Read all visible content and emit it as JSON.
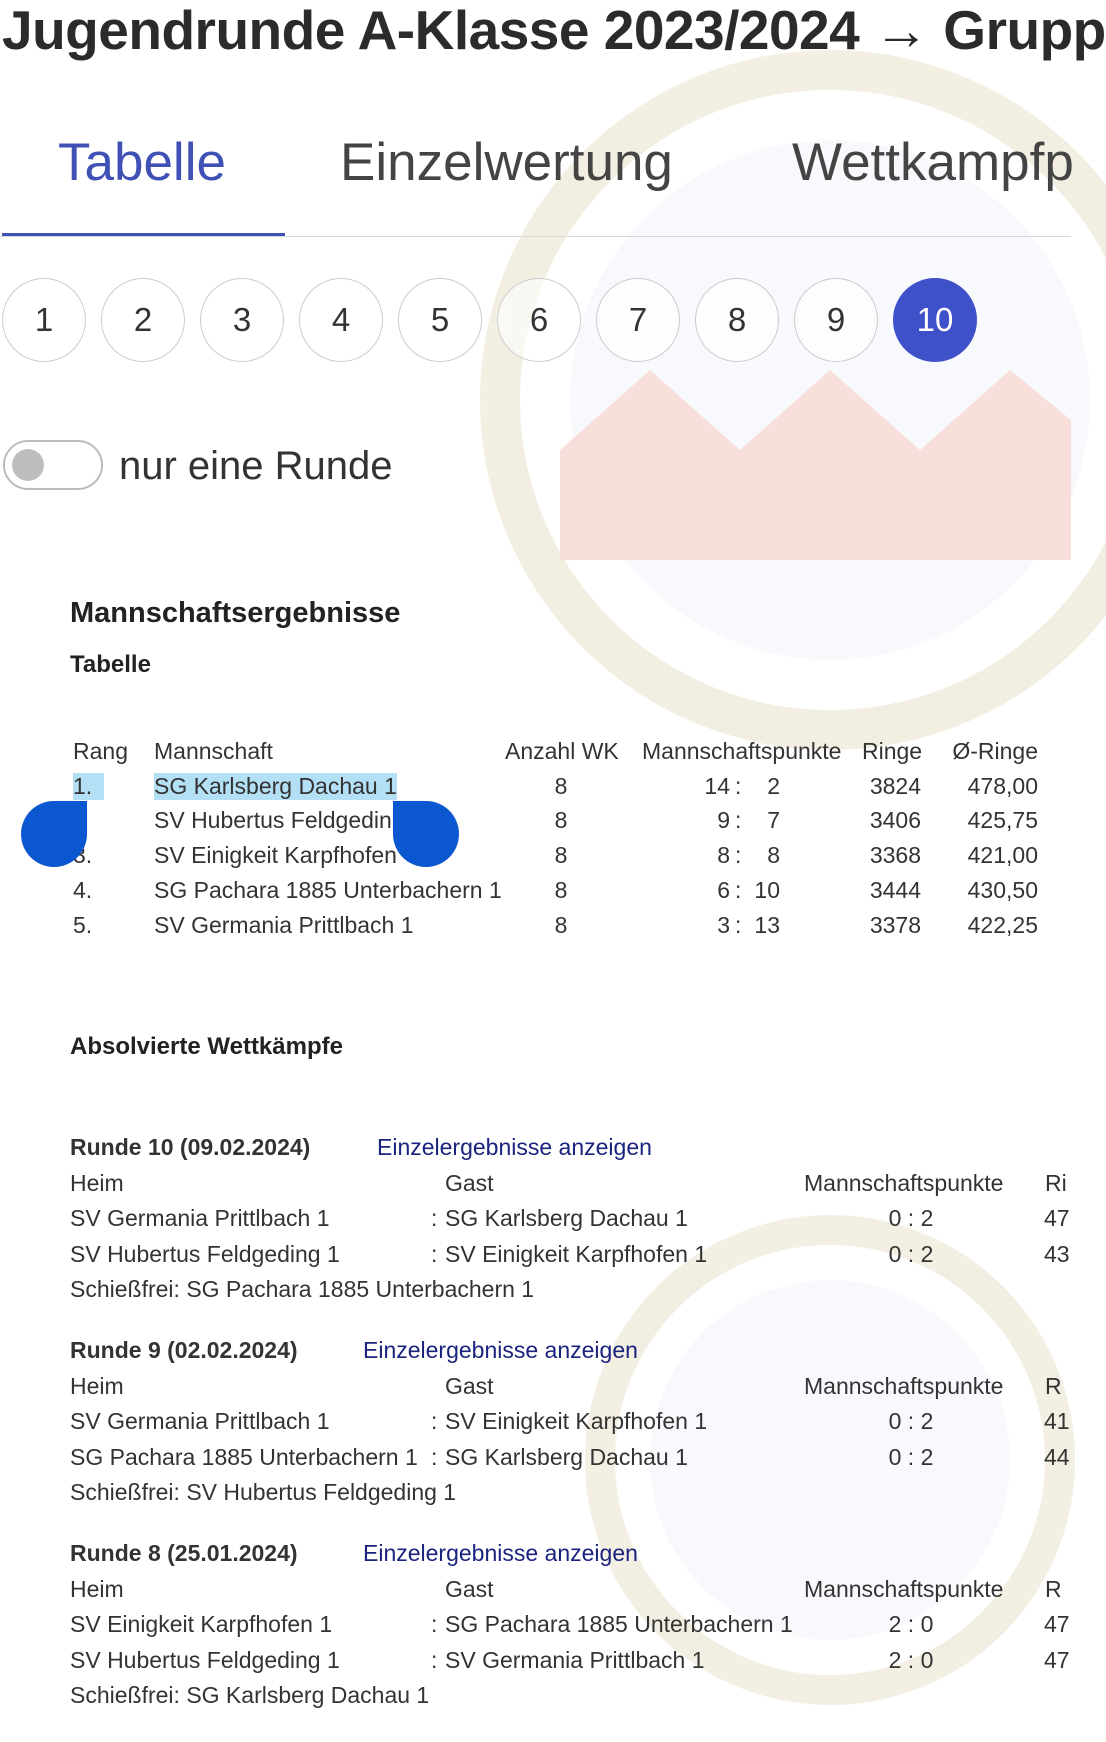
{
  "header": {
    "title": "Jugendrunde A-Klasse 2023/2024 → Grupp"
  },
  "tabs": [
    {
      "label": "Tabelle",
      "active": true
    },
    {
      "label": "Einzelwertung"
    },
    {
      "label": "Wettkampfp"
    }
  ],
  "accent_color": "#3f51b5",
  "pagination": {
    "pages": [
      "1",
      "2",
      "3",
      "4",
      "5",
      "6",
      "7",
      "8",
      "9",
      "10"
    ],
    "active": "10"
  },
  "toggle": {
    "label": "nur eine Runde",
    "on": false
  },
  "section_title": "Mannschaftsergebnisse",
  "table_title": "Tabelle",
  "standings": {
    "columns": [
      "Rang",
      "Mannschaft",
      "Anzahl WK",
      "Mannschaftspunkte",
      "Ringe",
      "Ø-Ringe"
    ],
    "rows": [
      {
        "rang": "1.",
        "team": "SG Karlsberg Dachau 1",
        "wk": "8",
        "mp_plus": "14",
        "mp_minus": "2",
        "ringe": "3824",
        "avg": "478,00"
      },
      {
        "rang": ".",
        "team": "SV Hubertus Feldgedin",
        "wk": "8",
        "mp_plus": "9",
        "mp_minus": "7",
        "ringe": "3406",
        "avg": "425,75"
      },
      {
        "rang": "3.",
        "team": "SV Einigkeit Karpfhofen",
        "wk": "8",
        "mp_plus": "8",
        "mp_minus": "8",
        "ringe": "3368",
        "avg": "421,00"
      },
      {
        "rang": "4.",
        "team": "SG Pachara 1885 Unterbachern 1",
        "wk": "8",
        "mp_plus": "6",
        "mp_minus": "10",
        "ringe": "3444",
        "avg": "430,50"
      },
      {
        "rang": "5.",
        "team": "SV Germania Prittlbach 1",
        "wk": "8",
        "mp_plus": "3",
        "mp_minus": "13",
        "ringe": "3378",
        "avg": "422,25"
      }
    ]
  },
  "completed_title": "Absolvierte Wettkämpfe",
  "rounds": [
    {
      "title": "Runde 10  (09.02.2024)",
      "link": "Einzelergebnisse anzeigen",
      "headers": [
        "Heim",
        "Gast",
        "Mannschaftspunkte",
        "Ri"
      ],
      "matches": [
        {
          "home": "SV Germania Prittlbach 1",
          "away": "SG Karlsberg Dachau 1",
          "mp": "0 : 2",
          "ringe": "47"
        },
        {
          "home": "SV Hubertus Feldgeding 1",
          "away": "SV Einigkeit Karpfhofen 1",
          "mp": "0 : 2",
          "ringe": "43"
        }
      ],
      "bye": "Schießfrei: SG Pachara 1885 Unterbachern 1"
    },
    {
      "title": "Runde 9  (02.02.2024)",
      "link": "Einzelergebnisse anzeigen",
      "headers": [
        "Heim",
        "Gast",
        "Mannschaftspunkte",
        "R"
      ],
      "matches": [
        {
          "home": "SV Germania Prittlbach 1",
          "away": "SV Einigkeit Karpfhofen 1",
          "mp": "0 : 2",
          "ringe": "41"
        },
        {
          "home": "SG Pachara 1885 Unterbachern 1",
          "away": "SG Karlsberg Dachau 1",
          "mp": "0 : 2",
          "ringe": "44"
        }
      ],
      "bye": "Schießfrei: SV Hubertus Feldgeding 1"
    },
    {
      "title": "Runde 8  (25.01.2024)",
      "link": "Einzelergebnisse anzeigen",
      "headers": [
        "Heim",
        "Gast",
        "Mannschaftspunkte",
        "R"
      ],
      "matches": [
        {
          "home": "SV Einigkeit Karpfhofen 1",
          "away": "SG Pachara 1885 Unterbachern 1",
          "mp": "2 : 0",
          "ringe": "47"
        },
        {
          "home": "SV Hubertus Feldgeding 1",
          "away": "SV Germania Prittlbach 1",
          "mp": "2 : 0",
          "ringe": "47"
        }
      ],
      "bye": "Schießfrei: SG Karlsberg Dachau 1"
    }
  ]
}
